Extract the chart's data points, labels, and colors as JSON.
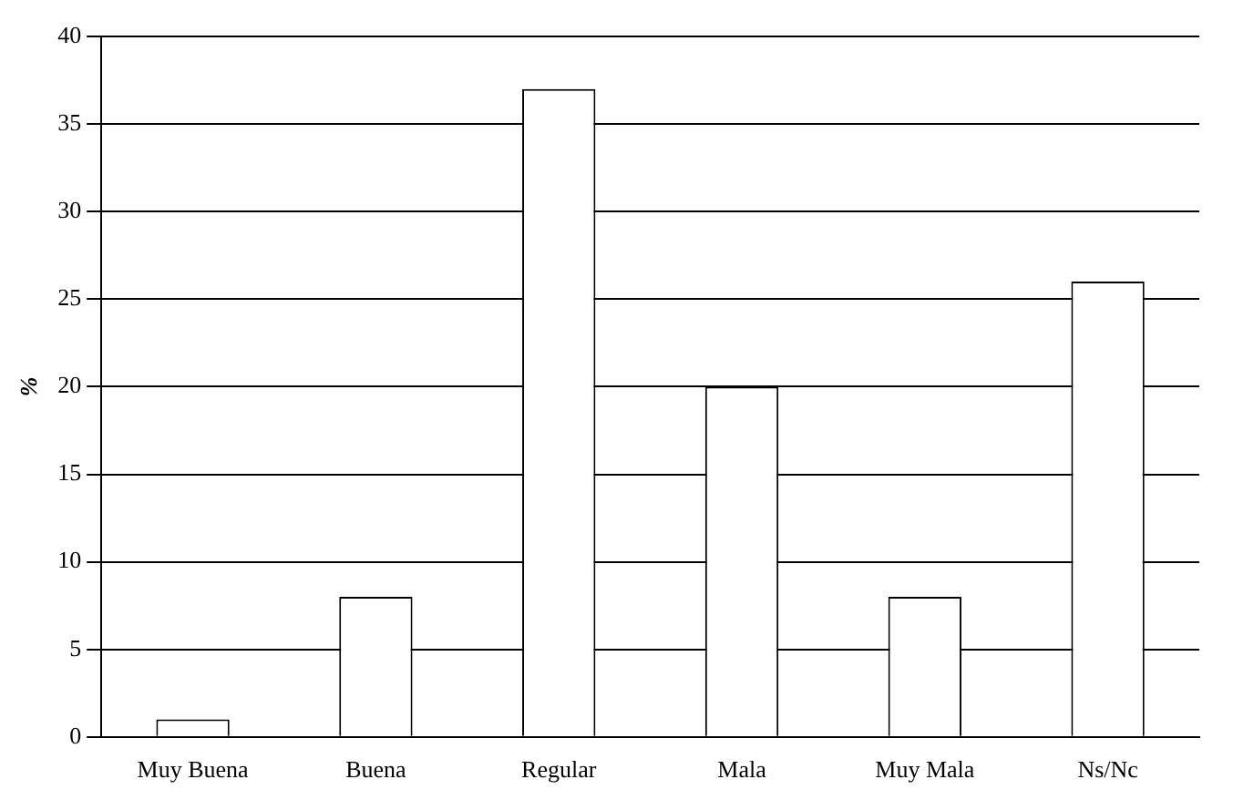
{
  "chart_data": {
    "type": "bar",
    "ylabel": "%",
    "categories": [
      "Muy Buena",
      "Buena",
      "Regular",
      "Mala",
      "Muy Mala",
      "Ns/Nc"
    ],
    "values": [
      1,
      8,
      37,
      20,
      8,
      26
    ],
    "color": "#ffffff",
    "ylim": [
      0,
      40
    ],
    "yticks": [
      0,
      5,
      10,
      15,
      20,
      25,
      30,
      35,
      40
    ],
    "grid": "y",
    "legend": false
  }
}
